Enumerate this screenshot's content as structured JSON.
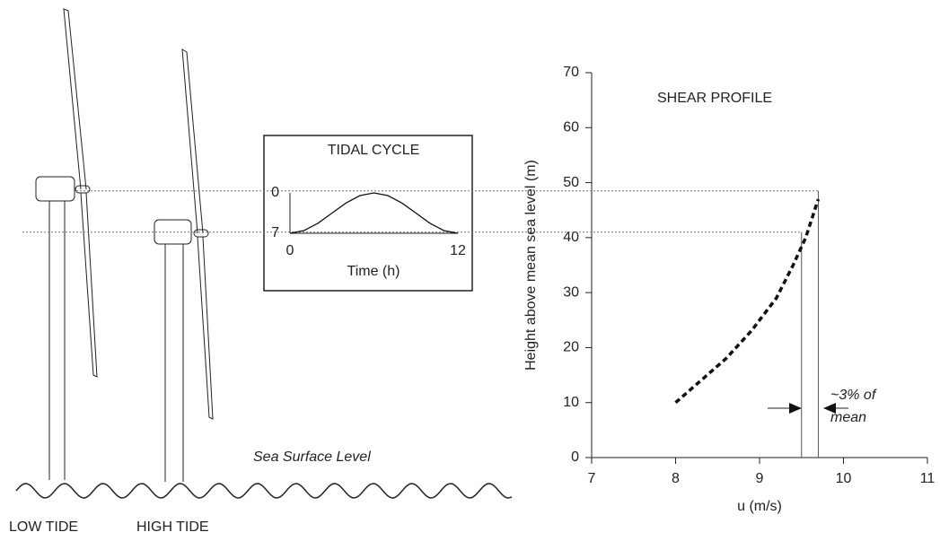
{
  "diagram": {
    "low_tide_label": "LOW TIDE",
    "high_tide_label": "HIGH TIDE",
    "sea_surface_label": "Sea Surface Level"
  },
  "chart_data": [
    {
      "type": "line",
      "title": "SHEAR PROFILE",
      "xlabel": "u (m/s)",
      "ylabel": "Height above mean sea level (m)",
      "xlim": [
        7,
        11
      ],
      "xticks": [
        7,
        8,
        9,
        10,
        11
      ],
      "ylim": [
        0,
        70
      ],
      "yticks": [
        0,
        10,
        20,
        30,
        40,
        50,
        60,
        70
      ],
      "series": [
        {
          "x": [
            8.0,
            8.3,
            8.6,
            8.9,
            9.2,
            9.4,
            9.55,
            9.7
          ],
          "values": [
            10,
            14,
            18,
            23,
            29,
            35,
            40,
            47
          ],
          "color": "#111111",
          "dashed": true
        }
      ],
      "hub_speeds": [
        9.7,
        9.5
      ],
      "hub_heights": [
        48.5,
        41
      ],
      "annotation": [
        "~3% of",
        "mean"
      ]
    },
    {
      "type": "line",
      "title": "TIDAL CYCLE",
      "xlabel": "Time (h)",
      "xlim": [
        0,
        12
      ],
      "xticks": [
        0,
        12
      ],
      "ylim": [
        7,
        0
      ],
      "yticks": [
        0,
        7
      ],
      "series": [
        {
          "x": [
            0,
            1,
            2,
            3,
            4,
            5,
            6,
            7,
            8,
            9,
            10,
            11,
            12
          ],
          "values": [
            7,
            6.53,
            5.25,
            3.5,
            1.75,
            0.47,
            0,
            0.47,
            1.75,
            3.5,
            5.25,
            6.53,
            7
          ],
          "color": "#111111",
          "dashed": false
        }
      ]
    }
  ]
}
